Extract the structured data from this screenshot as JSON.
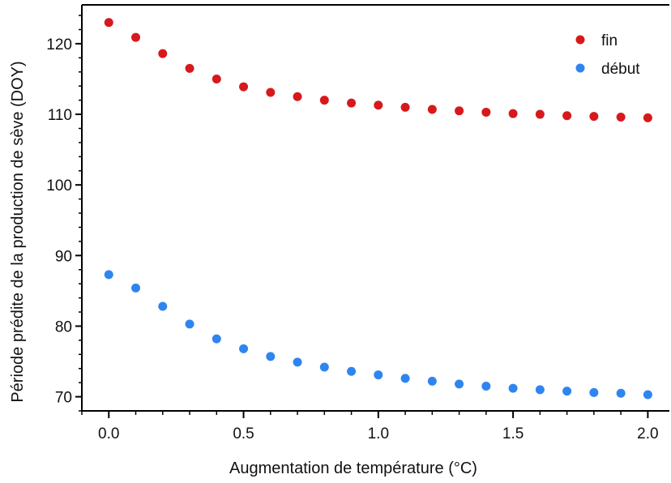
{
  "chart_data": {
    "type": "scatter",
    "xlabel": "Augmentation de température (°C)",
    "ylabel": "Période prédite de la production de sève (DOY)",
    "xlim": [
      -0.1,
      2.08
    ],
    "ylim": [
      68,
      125.5
    ],
    "xticks": [
      0.0,
      0.5,
      1.0,
      1.5,
      2.0
    ],
    "xtick_labels": [
      "0.0",
      "0.5",
      "1.0",
      "1.5",
      "2.0"
    ],
    "yticks": [
      70,
      80,
      90,
      100,
      110,
      120
    ],
    "ytick_labels": [
      "70",
      "80",
      "90",
      "100",
      "110",
      "120"
    ],
    "grid": false,
    "legend_position": "top-right",
    "x": [
      0.0,
      0.1,
      0.2,
      0.3,
      0.4,
      0.5,
      0.6,
      0.7,
      0.8,
      0.9,
      1.0,
      1.1,
      1.2,
      1.3,
      1.4,
      1.5,
      1.6,
      1.7,
      1.8,
      1.9,
      2.0
    ],
    "series": [
      {
        "name": "fin",
        "color": "#d7191c",
        "values": [
          123.0,
          120.9,
          118.6,
          116.5,
          115.0,
          113.9,
          113.1,
          112.5,
          112.0,
          111.6,
          111.3,
          111.0,
          110.7,
          110.5,
          110.3,
          110.1,
          110.0,
          109.8,
          109.7,
          109.6,
          109.5
        ]
      },
      {
        "name": "début",
        "color": "#2f85f0",
        "values": [
          87.3,
          85.4,
          82.8,
          80.3,
          78.2,
          76.8,
          75.7,
          74.9,
          74.2,
          73.6,
          73.1,
          72.6,
          72.2,
          71.8,
          71.5,
          71.2,
          71.0,
          70.8,
          70.6,
          70.5,
          70.3
        ]
      }
    ]
  }
}
